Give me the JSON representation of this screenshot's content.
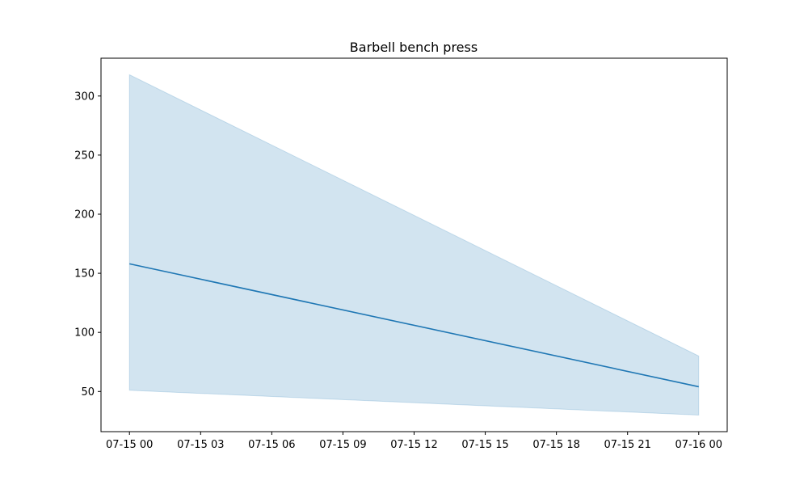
{
  "chart_data": {
    "type": "line",
    "title": "Barbell bench press",
    "xlabel": "",
    "ylabel": "",
    "x_axis": {
      "type": "datetime",
      "range": [
        "2023-07-14T22:48:00",
        "2023-07-16T01:12:00"
      ],
      "ticks": [
        {
          "value": "2023-07-15T00:00:00",
          "label": "07-15 00"
        },
        {
          "value": "2023-07-15T03:00:00",
          "label": "07-15 03"
        },
        {
          "value": "2023-07-15T06:00:00",
          "label": "07-15 06"
        },
        {
          "value": "2023-07-15T09:00:00",
          "label": "07-15 09"
        },
        {
          "value": "2023-07-15T12:00:00",
          "label": "07-15 12"
        },
        {
          "value": "2023-07-15T15:00:00",
          "label": "07-15 15"
        },
        {
          "value": "2023-07-15T18:00:00",
          "label": "07-15 18"
        },
        {
          "value": "2023-07-15T21:00:00",
          "label": "07-15 21"
        },
        {
          "value": "2023-07-16T00:00:00",
          "label": "07-16 00"
        }
      ]
    },
    "y_axis": {
      "ylim": [
        16,
        332
      ],
      "ticks": [
        50,
        100,
        150,
        200,
        250,
        300
      ]
    },
    "grid": false,
    "series": [
      {
        "x": [
          "2023-07-15T00:00:00",
          "2023-07-16T00:00:00"
        ],
        "values": [
          158,
          54
        ],
        "lower": [
          51,
          30
        ],
        "upper": [
          318,
          80
        ],
        "color": "#1f77b4",
        "band_color": "#1f77b4"
      }
    ]
  }
}
